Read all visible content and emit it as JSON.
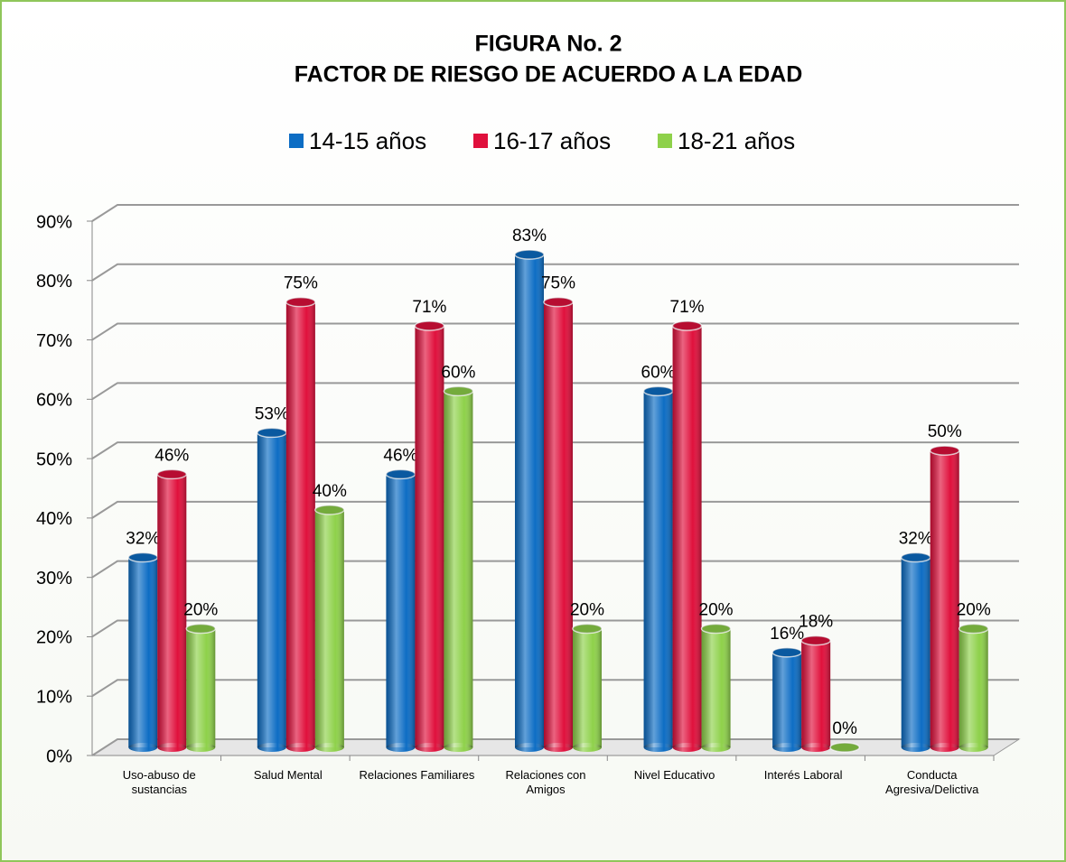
{
  "chart_data": {
    "type": "bar3d",
    "title": "FIGURA No. 2",
    "subtitle": "FACTOR DE RIESGO DE ACUERDO A LA EDAD",
    "categories": [
      "Uso-abuso de sustancias",
      "Salud Mental",
      "Relaciones Familiares",
      "Relaciones con Amigos",
      "Nivel Educativo",
      "Interés Laboral",
      "Conducta Agresiva/Delictiva"
    ],
    "series": [
      {
        "name": "14-15 años",
        "color": "#0d6dc4",
        "values": [
          32,
          53,
          46,
          83,
          60,
          16,
          32
        ],
        "value_labels": [
          "32%",
          "53%",
          "46%",
          "83%",
          "60%",
          "16%",
          "32%"
        ]
      },
      {
        "name": "16-17 años",
        "color": "#e0103c",
        "values": [
          46,
          75,
          71,
          75,
          71,
          18,
          50
        ],
        "value_labels": [
          "46%",
          "75%",
          "71%",
          "75%",
          "71%",
          "18%",
          "50%"
        ]
      },
      {
        "name": "18-21 años",
        "color": "#8ed14a",
        "values": [
          20,
          40,
          60,
          20,
          20,
          0,
          20
        ],
        "value_labels": [
          "20%",
          "40%",
          "60%",
          "20%",
          "20%",
          "0%",
          "20%"
        ]
      }
    ],
    "ylim": [
      0,
      90
    ],
    "yticks": [
      {
        "value": 0,
        "label": "0%"
      },
      {
        "value": 10,
        "label": "10%"
      },
      {
        "value": 20,
        "label": "20%"
      },
      {
        "value": 30,
        "label": "30%"
      },
      {
        "value": 40,
        "label": "40%"
      },
      {
        "value": 50,
        "label": "50%"
      },
      {
        "value": 60,
        "label": "60%"
      },
      {
        "value": 70,
        "label": "70%"
      },
      {
        "value": 80,
        "label": "80%"
      },
      {
        "value": 90,
        "label": "90%"
      }
    ],
    "grid": true,
    "legend": "top"
  }
}
